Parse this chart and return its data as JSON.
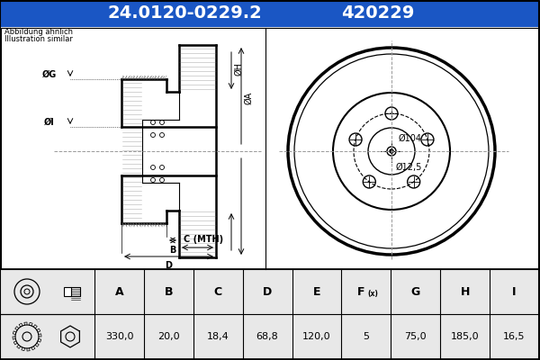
{
  "title_part": "24.0120-0229.2",
  "title_code": "420229",
  "title_bg": "#1a56c4",
  "title_text_color": "#ffffff",
  "subtitle_line1": "Abbildung ähnlich",
  "subtitle_line2": "Illustration similar",
  "bg_color": "#e8e8e8",
  "diagram_bg": "#e8e8e8",
  "white_bg": "#ffffff",
  "table_headers": [
    "A",
    "B",
    "C",
    "D",
    "E",
    "F(x)",
    "G",
    "H",
    "I"
  ],
  "table_values": [
    "330,0",
    "20,0",
    "18,4",
    "68,8",
    "120,0",
    "5",
    "75,0",
    "185,0",
    "16,5"
  ],
  "labels": {
    "phi_I": "ØI",
    "phi_G": "ØG",
    "phi_H": "ØH",
    "phi_A": "ØA",
    "B": "B",
    "C_MTH": "C (MTH)",
    "D": "D",
    "phi_104": "Ø104",
    "phi_12_5": "Ø12,5"
  },
  "line_color": "#000000",
  "gray_line": "#999999"
}
